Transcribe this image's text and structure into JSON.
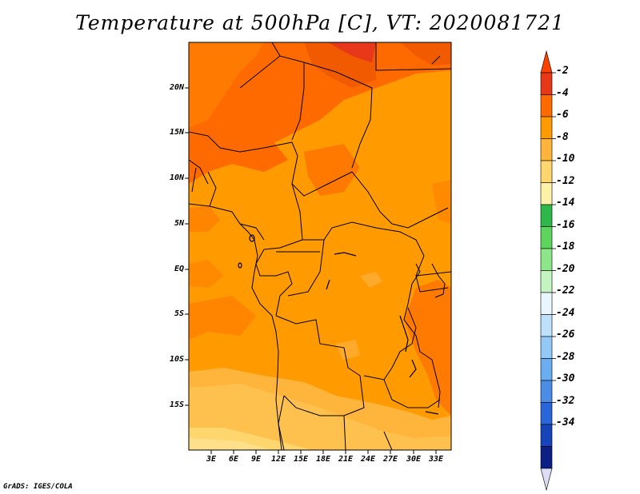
{
  "title": "Temperature at 500hPa [C], VT: 2020081721",
  "credit": "GrADS: IGES/COLA",
  "lat_labels": [
    "20N",
    "15N",
    "10N",
    "5N",
    "EQ",
    "5S",
    "10S",
    "15S"
  ],
  "lon_labels": [
    "3E",
    "6E",
    "9E",
    "12E",
    "15E",
    "18E",
    "21E",
    "24E",
    "27E",
    "30E",
    "33E"
  ],
  "colorbar": {
    "labels": [
      "-2",
      "-4",
      "-6",
      "-8",
      "-10",
      "-12",
      "-14",
      "-16",
      "-18",
      "-20",
      "-22",
      "-24",
      "-26",
      "-28",
      "-30",
      "-32",
      "-34"
    ],
    "colors": [
      "#e8381a",
      "#ff6a00",
      "#ff9b00",
      "#ffb43c",
      "#ffd56e",
      "#fff2a8",
      "#2fb84a",
      "#5ed45e",
      "#8ee68b",
      "#c4f5c0",
      "#eaf6ff",
      "#bfe0fb",
      "#93c8f7",
      "#6aadf0",
      "#4a8ce6",
      "#2a66d9",
      "#1744b8",
      "#0c1f85"
    ],
    "top_arrow_color": "#ff4000",
    "bottom_arrow_color": "#dcdcf5"
  }
}
